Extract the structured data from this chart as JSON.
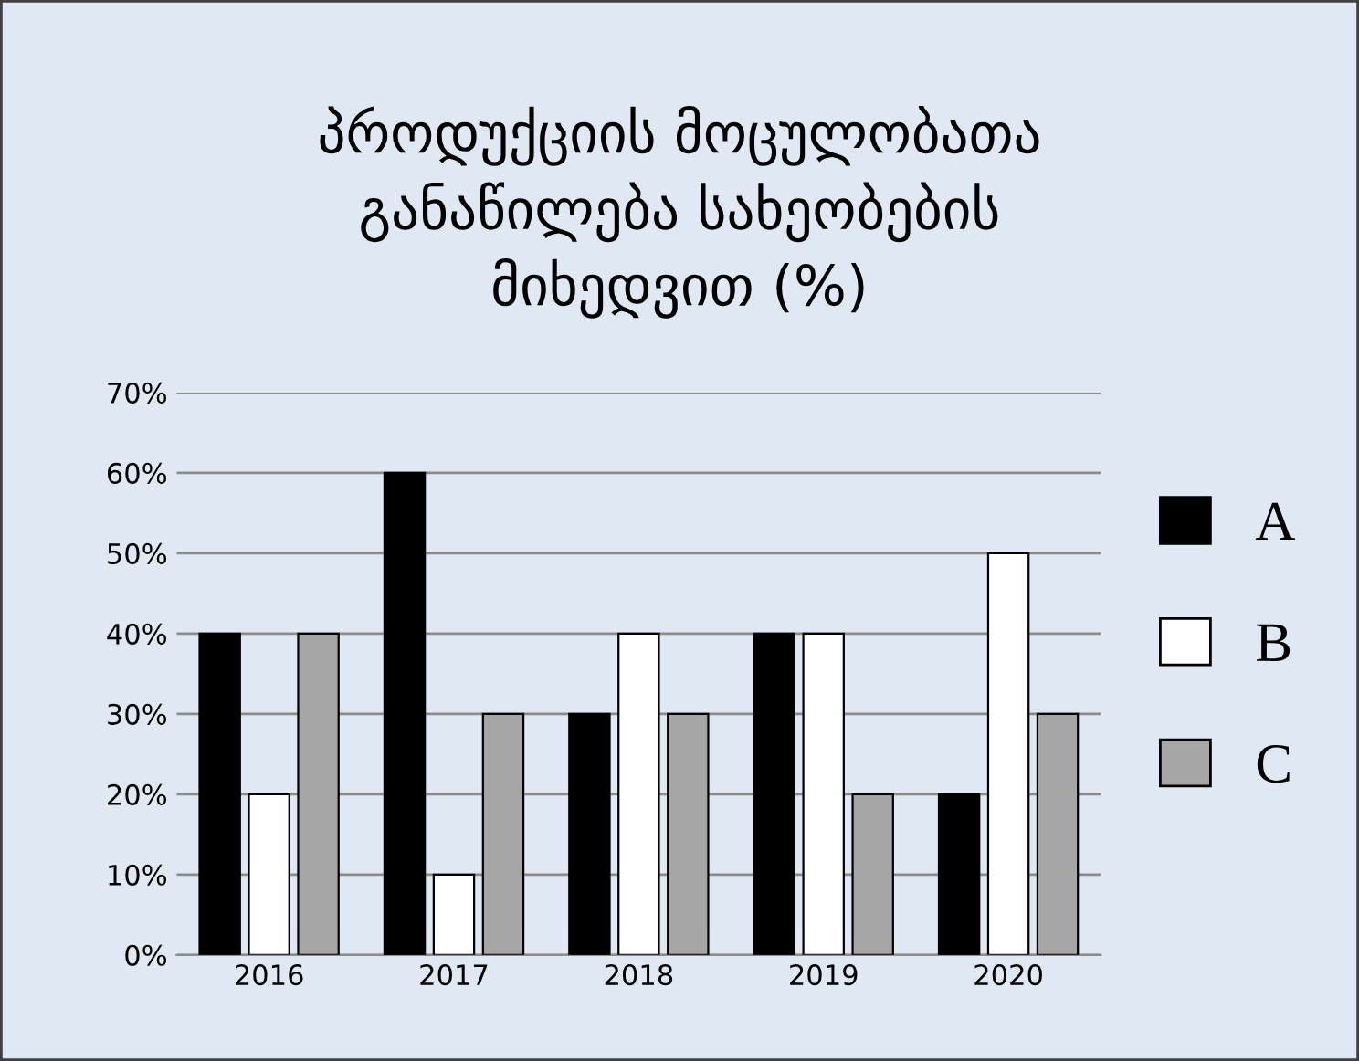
{
  "chart_data": {
    "type": "bar",
    "title": "პროდუქციის მოცულობათა\nგანაწილება სახეობების\nმიხედვით (%)",
    "categories": [
      "2016",
      "2017",
      "2018",
      "2019",
      "2020"
    ],
    "series": [
      {
        "name": "A",
        "color": "#000000",
        "values": [
          40,
          60,
          30,
          40,
          20
        ]
      },
      {
        "name": "B",
        "color": "#ffffff",
        "values": [
          20,
          10,
          40,
          40,
          50
        ]
      },
      {
        "name": "C",
        "color": "#a6a6a6",
        "values": [
          40,
          30,
          30,
          20,
          30
        ]
      }
    ],
    "ylim": [
      0,
      70
    ],
    "yticks": [
      {
        "value": 0,
        "label": "0%"
      },
      {
        "value": 10,
        "label": "10%"
      },
      {
        "value": 20,
        "label": "20%"
      },
      {
        "value": 30,
        "label": "30%"
      },
      {
        "value": 40,
        "label": "40%"
      },
      {
        "value": 50,
        "label": "50%"
      },
      {
        "value": 60,
        "label": "60%"
      },
      {
        "value": 70,
        "label": "70%"
      }
    ],
    "grid": "y",
    "legend": "right"
  }
}
